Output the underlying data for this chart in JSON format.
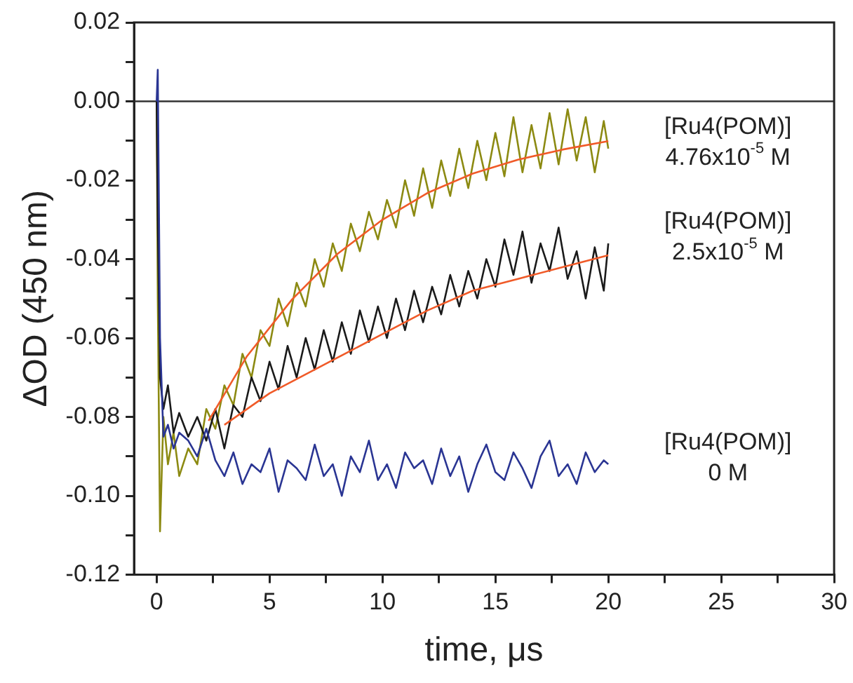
{
  "chart_data": {
    "type": "line",
    "xlabel": "time, μs",
    "ylabel": "ΔOD (450 nm)",
    "x": [
      0,
      0.05,
      0.15,
      0.3,
      0.5,
      0.75,
      1,
      1.4,
      1.8,
      2.2,
      2.6,
      3.0,
      3.4,
      3.8,
      4.2,
      4.6,
      5.0,
      5.4,
      5.8,
      6.2,
      6.6,
      7.0,
      7.4,
      7.8,
      8.2,
      8.6,
      9.0,
      9.4,
      9.8,
      10.2,
      10.6,
      11.0,
      11.4,
      11.8,
      12.2,
      12.6,
      13.0,
      13.4,
      13.8,
      14.2,
      14.6,
      15.0,
      15.4,
      15.8,
      16.2,
      16.6,
      17.0,
      17.4,
      17.8,
      18.2,
      18.6,
      19.0,
      19.4,
      19.8,
      20
    ],
    "series": [
      {
        "name": "[Ru4(POM)]\n4.76x10$^{-5}$ M",
        "color": "#8c8a12",
        "values": [
          0,
          -0.05,
          -0.109,
          -0.08,
          -0.092,
          -0.084,
          -0.095,
          -0.088,
          -0.092,
          -0.078,
          -0.083,
          -0.072,
          -0.077,
          -0.064,
          -0.07,
          -0.058,
          -0.062,
          -0.05,
          -0.057,
          -0.046,
          -0.052,
          -0.04,
          -0.047,
          -0.036,
          -0.043,
          -0.031,
          -0.038,
          -0.028,
          -0.035,
          -0.025,
          -0.032,
          -0.02,
          -0.029,
          -0.017,
          -0.027,
          -0.015,
          -0.024,
          -0.012,
          -0.022,
          -0.01,
          -0.02,
          -0.008,
          -0.019,
          -0.004,
          -0.018,
          -0.006,
          -0.017,
          -0.003,
          -0.016,
          -0.002,
          -0.015,
          -0.004,
          -0.018,
          -0.005,
          -0.012
        ]
      },
      {
        "name": "[Ru4(POM)]\n2.5x10$^{-5}$ M",
        "color": "#1a1a1a",
        "values": [
          0,
          -0.03,
          -0.07,
          -0.078,
          -0.072,
          -0.084,
          -0.079,
          -0.085,
          -0.08,
          -0.086,
          -0.078,
          -0.088,
          -0.077,
          -0.08,
          -0.07,
          -0.076,
          -0.066,
          -0.073,
          -0.062,
          -0.07,
          -0.06,
          -0.068,
          -0.058,
          -0.066,
          -0.056,
          -0.064,
          -0.053,
          -0.061,
          -0.052,
          -0.06,
          -0.05,
          -0.058,
          -0.048,
          -0.056,
          -0.047,
          -0.054,
          -0.044,
          -0.052,
          -0.043,
          -0.05,
          -0.04,
          -0.047,
          -0.035,
          -0.044,
          -0.033,
          -0.046,
          -0.036,
          -0.043,
          -0.032,
          -0.045,
          -0.038,
          -0.05,
          -0.037,
          -0.048,
          -0.036
        ]
      },
      {
        "name": "[Ru4(POM)]\n0 M",
        "color": "#2a3593",
        "values": [
          0,
          0.008,
          -0.06,
          -0.085,
          -0.082,
          -0.088,
          -0.084,
          -0.086,
          -0.09,
          -0.083,
          -0.091,
          -0.095,
          -0.089,
          -0.097,
          -0.092,
          -0.094,
          -0.088,
          -0.099,
          -0.091,
          -0.093,
          -0.096,
          -0.087,
          -0.095,
          -0.092,
          -0.1,
          -0.09,
          -0.094,
          -0.086,
          -0.096,
          -0.092,
          -0.098,
          -0.089,
          -0.093,
          -0.091,
          -0.097,
          -0.088,
          -0.095,
          -0.09,
          -0.099,
          -0.092,
          -0.087,
          -0.094,
          -0.096,
          -0.089,
          -0.093,
          -0.098,
          -0.09,
          -0.086,
          -0.095,
          -0.092,
          -0.097,
          -0.089,
          -0.094,
          -0.091,
          -0.092
        ]
      },
      {
        "type": "line",
        "color": "#f05a28",
        "x": [
          2.3,
          4,
          6,
          8,
          10,
          12,
          14,
          16,
          18,
          20
        ],
        "values": [
          -0.081,
          -0.0646,
          -0.0502,
          -0.0387,
          -0.03,
          -0.0232,
          -0.0183,
          -0.0148,
          -0.0122,
          -0.0101
        ]
      },
      {
        "type": "line",
        "color": "#f05a28",
        "x": [
          3,
          5,
          8,
          10,
          12,
          14,
          16,
          18,
          20
        ],
        "values": [
          -0.082,
          -0.074,
          -0.065,
          -0.059,
          -0.053,
          -0.048,
          -0.045,
          -0.042,
          -0.039
        ]
      }
    ],
    "xlim": [
      -1,
      30
    ],
    "xticks": [
      0,
      {
        "value": 2.5,
        "label": null
      },
      5,
      {
        "value": 7.5,
        "label": null
      },
      10,
      {
        "value": 12.5,
        "label": null
      },
      15,
      {
        "value": 17.5,
        "label": null
      },
      20,
      {
        "value": 22.5,
        "label": null
      },
      25,
      {
        "value": 27.5,
        "label": null
      },
      30
    ],
    "ylim": [
      -0.12,
      0.02
    ],
    "yticks": [
      {
        "value": -0.12,
        "label": "-0.12"
      },
      {
        "value": -0.11,
        "label": null
      },
      {
        "value": -0.1,
        "label": "-0.10"
      },
      {
        "value": -0.09,
        "label": null
      },
      {
        "value": -0.08,
        "label": "-0.08"
      },
      {
        "value": -0.07,
        "label": null
      },
      {
        "value": -0.06,
        "label": "-0.06"
      },
      {
        "value": -0.05,
        "label": null
      },
      {
        "value": -0.04,
        "label": "-0.04"
      },
      {
        "value": -0.03,
        "label": null
      },
      {
        "value": -0.02,
        "label": "-0.02"
      },
      {
        "value": -0.01,
        "label": null
      },
      {
        "value": 0,
        "label": "0.00"
      },
      {
        "value": 0.01,
        "label": null
      },
      {
        "value": 0.02,
        "label": "0.02"
      }
    ],
    "ref_lines": [
      {
        "axis": "y",
        "value": 0,
        "color": "#333333"
      }
    ],
    "grid": false,
    "legend": false,
    "marker": "none",
    "line_style": "solid"
  }
}
